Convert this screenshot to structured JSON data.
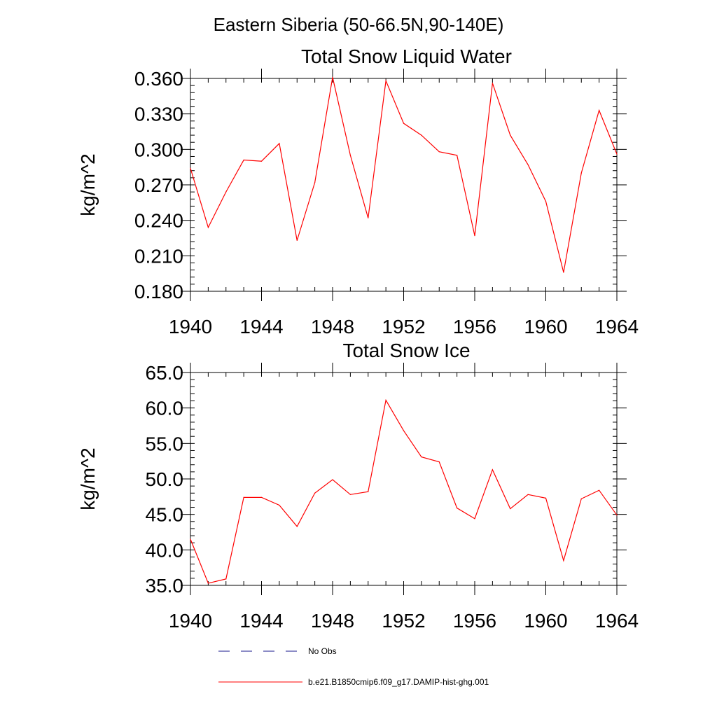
{
  "figure": {
    "title": "Eastern Siberia (50-66.5N,90-140E)"
  },
  "chart_data": [
    {
      "type": "line",
      "title": "Total Snow Liquid Water",
      "ylabel": "kg/m^2",
      "xlabel": "",
      "xlim": [
        1940,
        1964
      ],
      "ylim": [
        0.18,
        0.36
      ],
      "x_ticks": [
        "1940",
        "1944",
        "1948",
        "1952",
        "1956",
        "1960",
        "1964"
      ],
      "y_ticks": [
        "0.180",
        "0.210",
        "0.240",
        "0.270",
        "0.300",
        "0.330",
        "0.360"
      ],
      "x": [
        1940,
        1941,
        1942,
        1943,
        1944,
        1945,
        1946,
        1947,
        1948,
        1949,
        1950,
        1951,
        1952,
        1953,
        1954,
        1955,
        1956,
        1957,
        1958,
        1959,
        1960,
        1961,
        1962,
        1963,
        1964
      ],
      "series": [
        {
          "name": "b.e21.B1850cmip6.f09_g17.DAMIP-hist-ghg.001",
          "color": "#ff0000",
          "values": [
            0.284,
            0.234,
            0.264,
            0.291,
            0.29,
            0.305,
            0.223,
            0.272,
            0.361,
            0.295,
            0.242,
            0.358,
            0.322,
            0.312,
            0.298,
            0.295,
            0.227,
            0.356,
            0.312,
            0.287,
            0.256,
            0.196,
            0.28,
            0.333,
            0.296
          ]
        }
      ],
      "grid": false
    },
    {
      "type": "line",
      "title": "Total Snow Ice",
      "ylabel": "kg/m^2",
      "xlabel": "",
      "xlim": [
        1940,
        1964
      ],
      "ylim": [
        35.0,
        65.0
      ],
      "x_ticks": [
        "1940",
        "1944",
        "1948",
        "1952",
        "1956",
        "1960",
        "1964"
      ],
      "y_ticks": [
        "35.0",
        "40.0",
        "45.0",
        "50.0",
        "55.0",
        "60.0",
        "65.0"
      ],
      "x": [
        1940,
        1941,
        1942,
        1943,
        1944,
        1945,
        1946,
        1947,
        1948,
        1949,
        1950,
        1951,
        1952,
        1953,
        1954,
        1955,
        1956,
        1957,
        1958,
        1959,
        1960,
        1961,
        1962,
        1963,
        1964
      ],
      "series": [
        {
          "name": "b.e21.B1850cmip6.f09_g17.DAMIP-hist-ghg.001",
          "color": "#ff0000",
          "values": [
            41.5,
            35.3,
            35.9,
            47.4,
            47.4,
            46.3,
            43.3,
            48.0,
            49.9,
            47.8,
            48.2,
            61.1,
            56.8,
            53.1,
            52.4,
            45.9,
            44.4,
            51.3,
            45.8,
            47.8,
            47.3,
            38.5,
            47.2,
            48.4,
            44.9
          ]
        }
      ],
      "grid": false
    }
  ],
  "legend": {
    "placement": "bottom",
    "entries": [
      {
        "label": "No Obs",
        "color": "#1a1a8c",
        "style": "dashed"
      },
      {
        "label": "b.e21.B1850cmip6.f09_g17.DAMIP-hist-ghg.001",
        "color": "#ff0000",
        "style": "solid"
      }
    ]
  }
}
